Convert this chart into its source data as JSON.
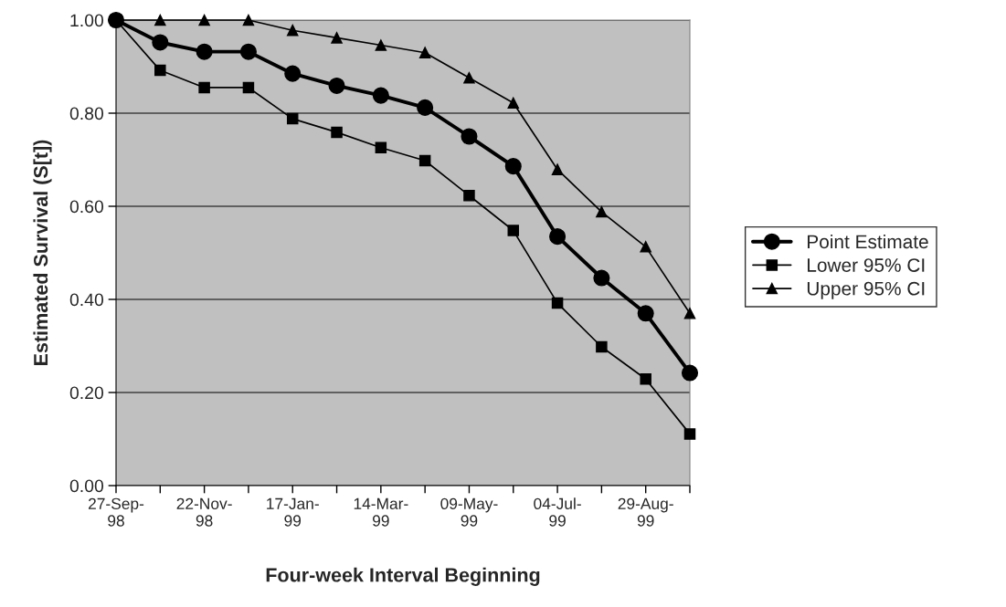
{
  "chart_data": {
    "type": "line",
    "xlabel": "Four-week Interval Beginning",
    "ylabel": "Estimated Survival (S[t])",
    "categories": [
      "27-Sep-98",
      null,
      "22-Nov-98",
      null,
      "17-Jan-99",
      null,
      "14-Mar-99",
      null,
      "09-May-99",
      null,
      "04-Jul-99",
      null,
      "29-Aug-99",
      null
    ],
    "series": [
      {
        "name": "Point Estimate",
        "color": "#000000",
        "marker": "circle",
        "values": [
          1.0,
          0.952,
          0.932,
          0.932,
          0.885,
          0.859,
          0.838,
          0.812,
          0.75,
          0.686,
          0.535,
          0.446,
          0.37,
          0.242
        ]
      },
      {
        "name": "Lower 95% CI",
        "color": "#000000",
        "marker": "square",
        "values": [
          1.0,
          0.892,
          0.855,
          0.855,
          0.788,
          0.759,
          0.726,
          0.698,
          0.623,
          0.548,
          0.392,
          0.298,
          0.229,
          0.111
        ]
      },
      {
        "name": "Upper 95% CI",
        "color": "#000000",
        "marker": "triangle",
        "values": [
          1.0,
          1.0,
          1.0,
          1.0,
          0.978,
          0.962,
          0.946,
          0.93,
          0.876,
          0.822,
          0.679,
          0.588,
          0.513,
          0.37
        ]
      }
    ],
    "ylim": [
      0,
      1
    ],
    "yticks": [
      {
        "value": 0,
        "label": "0.00"
      },
      {
        "value": 0.2,
        "label": "0.20"
      },
      {
        "value": 0.4,
        "label": "0.40"
      },
      {
        "value": 0.6,
        "label": "0.60"
      },
      {
        "value": 0.8,
        "label": "0.80"
      },
      {
        "value": 1,
        "label": "1.00"
      }
    ],
    "grid": "y",
    "legend": "right"
  }
}
